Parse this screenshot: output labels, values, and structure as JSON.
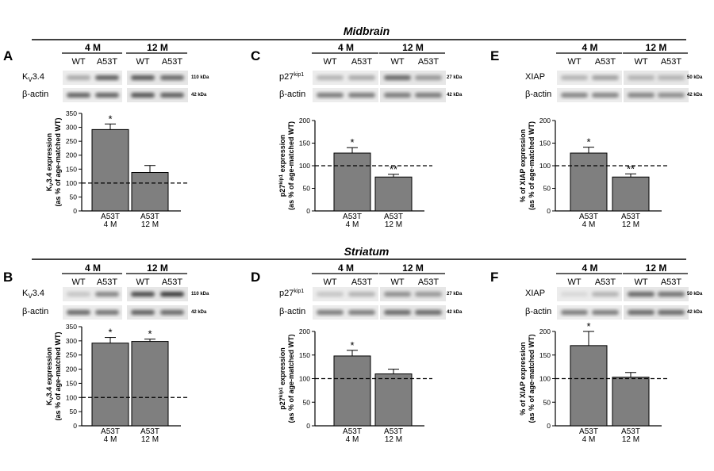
{
  "figure": {
    "section_titles": [
      "Midbrain",
      "Striatum"
    ],
    "lane_labels": [
      "WT",
      "A53T",
      "WT",
      "A53T"
    ],
    "group_labels": [
      "4 M",
      "12 M"
    ]
  },
  "panels": [
    {
      "letter": "A",
      "protein": "Kv3.4",
      "protein_label": "K",
      "protein_sub": "V",
      "protein_rest": "3.4",
      "kda": "110 kDa",
      "actin_label": "β-actin",
      "actin_kda": "42 kDa",
      "ylabel_line1_parts": [
        "K",
        "V",
        "3.4 expression"
      ],
      "ylabel_line2": "(as % of age-matched WT)"
    },
    {
      "letter": "C",
      "protein": "p27kip1",
      "protein_label": "p27",
      "protein_sup": "kip1",
      "kda": "27 kDa",
      "actin_label": "β-actin",
      "actin_kda": "42 kDa",
      "ylabel_line1_parts": [
        "p27",
        "kip1",
        " expression"
      ],
      "ylabel_line2": "(as % of age-matched WT)"
    },
    {
      "letter": "E",
      "protein": "XIAP",
      "protein_label": "XIAP",
      "kda": "50 kDa",
      "actin_label": "β-actin",
      "actin_kda": "42 kDa",
      "ylabel_line1": "% of XIAP expression",
      "ylabel_line2": "(as % of age-matched WT)"
    },
    {
      "letter": "B",
      "protein": "Kv3.4",
      "protein_label": "K",
      "protein_sub": "V",
      "protein_rest": "3.4",
      "kda": "110 kDa",
      "actin_label": "β-actin",
      "actin_kda": "42 kDa",
      "ylabel_line1_parts": [
        "K",
        "V",
        "3.4 expression"
      ],
      "ylabel_line2": "(as % of age-matched WT)"
    },
    {
      "letter": "D",
      "protein": "p27kip1",
      "protein_label": "p27",
      "protein_sup": "kip1",
      "kda": "27 kDa",
      "actin_label": "β-actin",
      "actin_kda": "42 kDa",
      "ylabel_line1_parts": [
        "p27",
        "kip1",
        " expression"
      ],
      "ylabel_line2": "(as % of age-matched WT)"
    },
    {
      "letter": "F",
      "protein": "XIAP",
      "protein_label": "XIAP",
      "kda": "50 kDa",
      "actin_label": "β-actin",
      "actin_kda": "42 kDa",
      "ylabel_line1": "% of XIAP expression",
      "ylabel_line2": "(as % of age-matched WT)"
    }
  ],
  "chart_data": [
    {
      "panel": "A",
      "type": "bar",
      "categories": [
        "A53T\n4 M",
        "A53T\n12 M"
      ],
      "values": [
        292,
        138
      ],
      "errors": [
        20,
        25
      ],
      "significance": [
        "*",
        ""
      ],
      "ylim": [
        0,
        350
      ],
      "yticks": [
        0,
        50,
        100,
        150,
        200,
        250,
        300,
        350
      ],
      "reference_line": 100
    },
    {
      "panel": "C",
      "type": "bar",
      "categories": [
        "A53T\n4 M",
        "A53T\n12 M"
      ],
      "values": [
        128,
        75
      ],
      "errors": [
        12,
        6
      ],
      "significance": [
        "*",
        "**"
      ],
      "ylim": [
        0,
        200
      ],
      "yticks": [
        0,
        50,
        100,
        150,
        200
      ],
      "reference_line": 100
    },
    {
      "panel": "E",
      "type": "bar",
      "categories": [
        "A53T\n4 M",
        "A53T\n12 M"
      ],
      "values": [
        128,
        75
      ],
      "errors": [
        13,
        7
      ],
      "significance": [
        "*",
        "**"
      ],
      "ylim": [
        0,
        200
      ],
      "yticks": [
        0,
        50,
        100,
        150,
        200
      ],
      "reference_line": 100
    },
    {
      "panel": "B",
      "type": "bar",
      "categories": [
        "A53T\n4 M",
        "A53T\n12 M"
      ],
      "values": [
        292,
        298
      ],
      "errors": [
        20,
        8
      ],
      "significance": [
        "*",
        "*"
      ],
      "ylim": [
        0,
        350
      ],
      "yticks": [
        0,
        50,
        100,
        150,
        200,
        250,
        300,
        350
      ],
      "reference_line": 100
    },
    {
      "panel": "D",
      "type": "bar",
      "categories": [
        "A53T\n4 M",
        "A53T\n12 M"
      ],
      "values": [
        148,
        110
      ],
      "errors": [
        12,
        10
      ],
      "significance": [
        "*",
        ""
      ],
      "ylim": [
        0,
        200
      ],
      "yticks": [
        0,
        50,
        100,
        150,
        200
      ],
      "reference_line": 100
    },
    {
      "panel": "F",
      "type": "bar",
      "categories": [
        "A53T\n4 M",
        "A53T\n12 M"
      ],
      "values": [
        170,
        103
      ],
      "errors": [
        30,
        10
      ],
      "significance": [
        "*",
        ""
      ],
      "ylim": [
        0,
        200
      ],
      "yticks": [
        0,
        50,
        100,
        150,
        200
      ],
      "reference_line": 100
    }
  ],
  "blots": [
    {
      "panel": "A",
      "target": [
        0.35,
        0.75,
        0.78,
        0.7
      ],
      "actin": [
        0.72,
        0.72,
        0.8,
        0.75
      ]
    },
    {
      "panel": "C",
      "target": [
        0.3,
        0.35,
        0.7,
        0.45
      ],
      "actin": [
        0.6,
        0.6,
        0.6,
        0.6
      ]
    },
    {
      "panel": "E",
      "target": [
        0.3,
        0.4,
        0.3,
        0.3
      ],
      "actin": [
        0.55,
        0.55,
        0.55,
        0.5
      ]
    },
    {
      "panel": "B",
      "target": [
        0.2,
        0.55,
        0.85,
        0.95
      ],
      "actin": [
        0.7,
        0.65,
        0.75,
        0.7
      ]
    },
    {
      "panel": "D",
      "target": [
        0.2,
        0.3,
        0.5,
        0.45
      ],
      "actin": [
        0.6,
        0.6,
        0.7,
        0.7
      ]
    },
    {
      "panel": "F",
      "target": [
        0.1,
        0.3,
        0.7,
        0.65
      ],
      "actin": [
        0.6,
        0.6,
        0.7,
        0.7
      ]
    }
  ]
}
